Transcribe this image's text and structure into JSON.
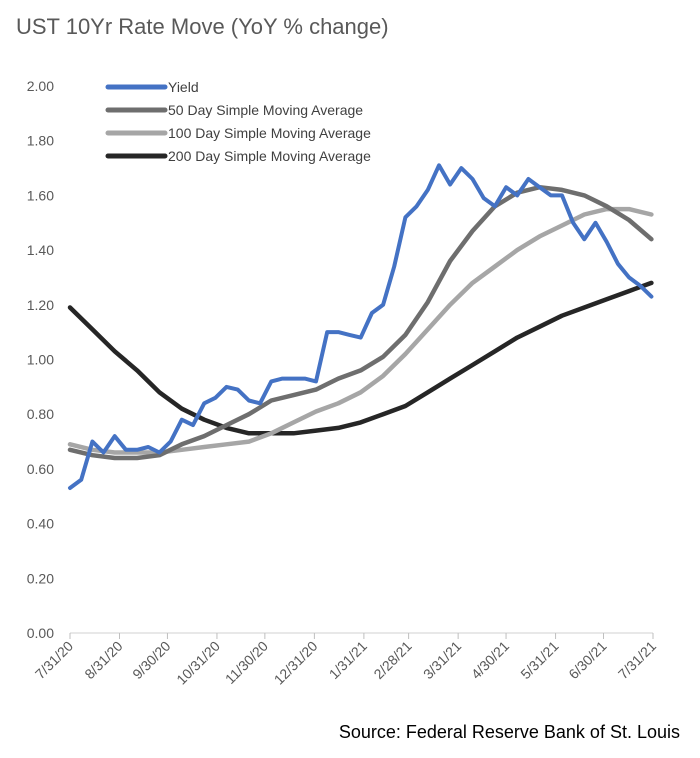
{
  "chart_data": {
    "type": "line",
    "title": "UST 10Yr Rate Move (YoY % change)",
    "source": "Source: Federal Reserve Bank of St. Louis",
    "xlabel": "",
    "ylabel": "",
    "ylim": [
      0,
      2.0
    ],
    "y_ticks": [
      "0.00",
      "0.20",
      "0.40",
      "0.60",
      "0.80",
      "1.00",
      "1.20",
      "1.40",
      "1.60",
      "1.80",
      "2.00"
    ],
    "x_ticks": [
      "7/31/20",
      "8/31/20",
      "9/30/20",
      "10/31/20",
      "11/30/20",
      "12/31/20",
      "1/31/21",
      "2/28/21",
      "3/31/21",
      "4/30/21",
      "5/31/21",
      "6/30/21",
      "7/31/21"
    ],
    "grid": false,
    "legend_position": "top-left",
    "series": [
      {
        "name": "Yield",
        "color": "#4472C4",
        "x": [
          "7/31/20",
          "8/7/20",
          "8/14/20",
          "8/21/20",
          "8/28/20",
          "9/4/20",
          "9/11/20",
          "9/18/20",
          "9/25/20",
          "10/2/20",
          "10/9/20",
          "10/16/20",
          "10/23/20",
          "10/30/20",
          "11/6/20",
          "11/13/20",
          "11/20/20",
          "11/27/20",
          "12/4/20",
          "12/11/20",
          "12/18/20",
          "12/25/20",
          "1/1/21",
          "1/8/21",
          "1/15/21",
          "1/22/21",
          "1/29/21",
          "2/5/21",
          "2/12/21",
          "2/19/21",
          "2/26/21",
          "3/5/21",
          "3/12/21",
          "3/19/21",
          "3/26/21",
          "4/2/21",
          "4/9/21",
          "4/16/21",
          "4/23/21",
          "4/30/21",
          "5/7/21",
          "5/14/21",
          "5/21/21",
          "5/28/21",
          "6/4/21",
          "6/11/21",
          "6/18/21",
          "6/25/21",
          "7/2/21",
          "7/9/21",
          "7/16/21",
          "7/23/21",
          "7/30/21"
        ],
        "values": [
          0.53,
          0.56,
          0.7,
          0.66,
          0.72,
          0.67,
          0.67,
          0.68,
          0.66,
          0.7,
          0.78,
          0.76,
          0.84,
          0.86,
          0.9,
          0.89,
          0.85,
          0.84,
          0.92,
          0.93,
          0.93,
          0.93,
          0.92,
          1.1,
          1.1,
          1.09,
          1.08,
          1.17,
          1.2,
          1.34,
          1.52,
          1.56,
          1.62,
          1.71,
          1.64,
          1.7,
          1.66,
          1.59,
          1.56,
          1.63,
          1.6,
          1.66,
          1.63,
          1.6,
          1.6,
          1.5,
          1.44,
          1.5,
          1.43,
          1.35,
          1.3,
          1.27,
          1.23
        ]
      },
      {
        "name": "50 Day Simple Moving Average",
        "color": "#6E6E6E",
        "x": [
          "7/31/20",
          "8/14/20",
          "8/28/20",
          "9/11/20",
          "9/25/20",
          "10/9/20",
          "10/23/20",
          "11/6/20",
          "11/20/20",
          "12/4/20",
          "12/18/20",
          "1/1/21",
          "1/15/21",
          "1/29/21",
          "2/12/21",
          "2/26/21",
          "3/12/21",
          "3/26/21",
          "4/9/21",
          "4/23/21",
          "5/7/21",
          "5/21/21",
          "6/4/21",
          "6/18/21",
          "7/2/21",
          "7/16/21",
          "7/30/21"
        ],
        "values": [
          0.67,
          0.65,
          0.64,
          0.64,
          0.65,
          0.69,
          0.72,
          0.76,
          0.8,
          0.85,
          0.87,
          0.89,
          0.93,
          0.96,
          1.01,
          1.09,
          1.21,
          1.36,
          1.47,
          1.56,
          1.61,
          1.63,
          1.62,
          1.6,
          1.56,
          1.51,
          1.44
        ]
      },
      {
        "name": "100 Day Simple Moving Average",
        "color": "#A6A6A6",
        "x": [
          "7/31/20",
          "8/14/20",
          "8/28/20",
          "9/11/20",
          "9/25/20",
          "10/9/20",
          "10/23/20",
          "11/6/20",
          "11/20/20",
          "12/4/20",
          "12/18/20",
          "1/1/21",
          "1/15/21",
          "1/29/21",
          "2/12/21",
          "2/26/21",
          "3/12/21",
          "3/26/21",
          "4/9/21",
          "4/23/21",
          "5/7/21",
          "5/21/21",
          "6/4/21",
          "6/18/21",
          "7/2/21",
          "7/16/21",
          "7/30/21"
        ],
        "values": [
          0.69,
          0.67,
          0.66,
          0.66,
          0.66,
          0.67,
          0.68,
          0.69,
          0.7,
          0.73,
          0.77,
          0.81,
          0.84,
          0.88,
          0.94,
          1.02,
          1.11,
          1.2,
          1.28,
          1.34,
          1.4,
          1.45,
          1.49,
          1.53,
          1.55,
          1.55,
          1.53
        ]
      },
      {
        "name": "200 Day Simple Moving Average",
        "color": "#262626",
        "x": [
          "7/31/20",
          "8/14/20",
          "8/28/20",
          "9/11/20",
          "9/25/20",
          "10/9/20",
          "10/23/20",
          "11/6/20",
          "11/20/20",
          "12/4/20",
          "12/18/20",
          "1/1/21",
          "1/15/21",
          "1/29/21",
          "2/12/21",
          "2/26/21",
          "3/12/21",
          "3/26/21",
          "4/9/21",
          "4/23/21",
          "5/7/21",
          "5/21/21",
          "6/4/21",
          "6/18/21",
          "7/2/21",
          "7/16/21",
          "7/30/21"
        ],
        "values": [
          1.19,
          1.11,
          1.03,
          0.96,
          0.88,
          0.82,
          0.78,
          0.75,
          0.73,
          0.73,
          0.73,
          0.74,
          0.75,
          0.77,
          0.8,
          0.83,
          0.88,
          0.93,
          0.98,
          1.03,
          1.08,
          1.12,
          1.16,
          1.19,
          1.22,
          1.25,
          1.28
        ]
      }
    ]
  }
}
